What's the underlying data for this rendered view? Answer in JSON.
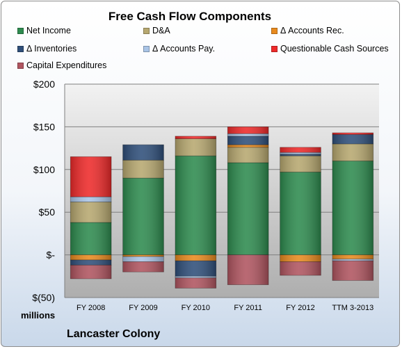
{
  "chart_data": {
    "type": "bar",
    "stacked": true,
    "title": "Free Cash Flow Components",
    "categories": [
      "FY 2008",
      "FY 2009",
      "FY 2010",
      "FY 2011",
      "FY 2012",
      "TTM 3-2013"
    ],
    "ylim": [
      -50,
      200
    ],
    "yticks": [
      -50,
      0,
      50,
      100,
      150,
      200
    ],
    "ytick_labels": [
      "$(50)",
      "$-",
      "$50",
      "$100",
      "$150",
      "$200"
    ],
    "yunit_label": "millions",
    "grid": true,
    "legend": "top",
    "series": [
      {
        "name": "Net Income",
        "color": "#2e8b4f",
        "values": [
          38,
          90,
          116,
          108,
          97,
          110
        ]
      },
      {
        "name": "D&A",
        "color": "#b7a870",
        "values": [
          24,
          21,
          20,
          18,
          19,
          20
        ]
      },
      {
        "name": "Δ Accounts Rec.",
        "color": "#e88a1e",
        "values": [
          -6,
          -2,
          -7,
          3,
          -8,
          -5
        ]
      },
      {
        "name": "Δ Inventories",
        "color": "#2f4f7a",
        "values": [
          -6,
          18,
          -18,
          10,
          2,
          11
        ]
      },
      {
        "name": "Δ Accounts Pay.",
        "color": "#a9c4e6",
        "values": [
          6,
          -6,
          -2,
          3,
          2,
          -2
        ]
      },
      {
        "name": "Questionable Cash Sources",
        "color": "#ee2a2a",
        "values": [
          47,
          0,
          3,
          8,
          6,
          2
        ]
      },
      {
        "name": "Capital Expenditures",
        "color": "#b05560",
        "values": [
          -16,
          -12,
          -12,
          -35,
          -16,
          -23
        ]
      }
    ]
  },
  "footer": {
    "company": "Lancaster Colony"
  }
}
